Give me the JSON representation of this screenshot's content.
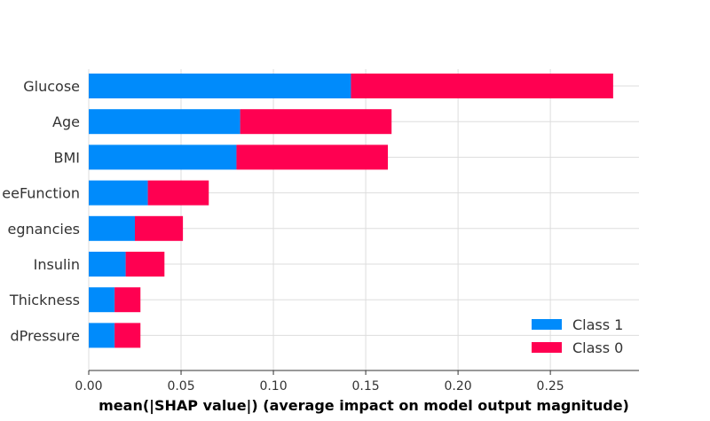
{
  "chart_data": {
    "type": "bar",
    "stacked": true,
    "orientation": "horizontal",
    "title": "",
    "xlabel": "mean(|SHAP value|) (average impact on model output magnitude)",
    "ylabel": "",
    "categories": [
      "Glucose",
      "Age",
      "BMI",
      "eeFunction",
      "egnancies",
      "Insulin",
      "Thickness",
      "dPressure"
    ],
    "series": [
      {
        "name": "Class 1",
        "color": "#008bfb",
        "values": [
          0.142,
          0.082,
          0.08,
          0.032,
          0.025,
          0.02,
          0.014,
          0.014
        ]
      },
      {
        "name": "Class 0",
        "color": "#ff0051",
        "values": [
          0.142,
          0.082,
          0.082,
          0.033,
          0.026,
          0.021,
          0.014,
          0.014
        ]
      }
    ],
    "xlim": [
      0,
      0.298
    ],
    "xticks": [
      "0.00",
      "0.05",
      "0.10",
      "0.15",
      "0.20",
      "0.25"
    ],
    "grid": true,
    "legend_position": "bottom-right"
  }
}
